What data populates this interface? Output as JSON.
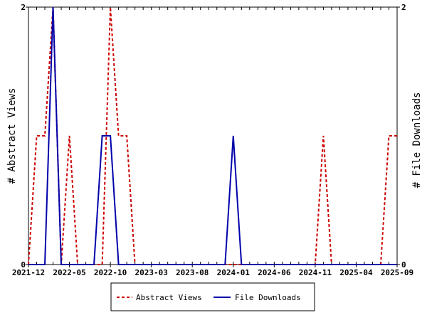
{
  "chart_data": {
    "type": "line",
    "x_tick_labels": [
      "2021-12",
      "2022-05",
      "2022-10",
      "2023-03",
      "2023-08",
      "2024-01",
      "2024-06",
      "2024-11",
      "2025-04",
      "2025-09"
    ],
    "xlim": [
      "2021-12",
      "2025-09"
    ],
    "ylabel_left": "# Abstract Views",
    "ylabel_right": "# File Downloads",
    "ylim_left": [
      0,
      2
    ],
    "ylim_right": [
      0,
      2
    ],
    "y_ticks_left": [
      "0",
      "2"
    ],
    "y_ticks_right": [
      "0",
      "2"
    ],
    "grid": false,
    "legend_position": "bottom",
    "series": [
      {
        "name": "Abstract Views",
        "color": "#cc0000",
        "style": "dashed",
        "axis": "left",
        "x": [
          "2021-12",
          "2022-01",
          "2022-02",
          "2022-03",
          "2022-04",
          "2022-05",
          "2022-06",
          "2022-07",
          "2022-08",
          "2022-09",
          "2022-10",
          "2022-11",
          "2022-12",
          "2023-01",
          "2023-02",
          "2023-03",
          "2023-04",
          "2023-05",
          "2023-06",
          "2023-07",
          "2023-08",
          "2023-09",
          "2023-10",
          "2023-11",
          "2023-12",
          "2024-01",
          "2024-02",
          "2024-03",
          "2024-04",
          "2024-05",
          "2024-06",
          "2024-07",
          "2024-08",
          "2024-09",
          "2024-10",
          "2024-11",
          "2024-12",
          "2025-01",
          "2025-02",
          "2025-03",
          "2025-04",
          "2025-05",
          "2025-06",
          "2025-07",
          "2025-08",
          "2025-09"
        ],
        "values": [
          0,
          1,
          1,
          2,
          0,
          1,
          0,
          0,
          0,
          0,
          2,
          1,
          1,
          0,
          0,
          0,
          0,
          0,
          0,
          0,
          0,
          0,
          0,
          0,
          0,
          0,
          0,
          0,
          0,
          0,
          0,
          0,
          0,
          0,
          0,
          0,
          1,
          0,
          0,
          0,
          0,
          0,
          0,
          0,
          1,
          1
        ]
      },
      {
        "name": "File Downloads",
        "color": "#0000aa",
        "style": "solid",
        "axis": "right",
        "x": [
          "2021-12",
          "2022-01",
          "2022-02",
          "2022-03",
          "2022-04",
          "2022-05",
          "2022-06",
          "2022-07",
          "2022-08",
          "2022-09",
          "2022-10",
          "2022-11",
          "2022-12",
          "2023-01",
          "2023-02",
          "2023-03",
          "2023-04",
          "2023-05",
          "2023-06",
          "2023-07",
          "2023-08",
          "2023-09",
          "2023-10",
          "2023-11",
          "2023-12",
          "2024-01",
          "2024-02",
          "2024-03",
          "2024-04",
          "2024-05",
          "2024-06",
          "2024-07",
          "2024-08",
          "2024-09",
          "2024-10",
          "2024-11",
          "2024-12",
          "2025-01",
          "2025-02",
          "2025-03",
          "2025-04",
          "2025-05",
          "2025-06",
          "2025-07",
          "2025-08",
          "2025-09"
        ],
        "values": [
          0,
          0,
          0,
          2,
          0,
          0,
          0,
          0,
          0,
          1,
          1,
          0,
          0,
          0,
          0,
          0,
          0,
          0,
          0,
          0,
          0,
          0,
          0,
          0,
          0,
          1,
          0,
          0,
          0,
          0,
          0,
          0,
          0,
          0,
          0,
          0,
          0,
          0,
          0,
          0,
          0,
          0,
          0,
          0,
          0,
          0
        ]
      }
    ]
  }
}
